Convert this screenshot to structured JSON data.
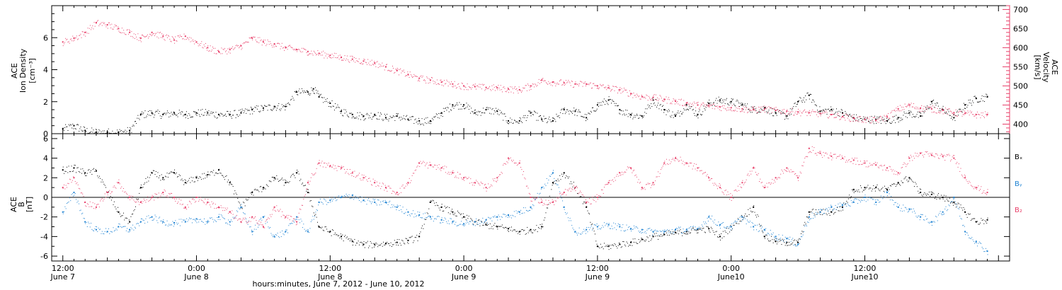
{
  "colors": {
    "black": "#000000",
    "pink": "#e8406a",
    "blue": "#1e82d2"
  },
  "x_axis": {
    "major_ticks": [
      {
        "time": "12:00",
        "date": "June 7"
      },
      {
        "time": "0:00",
        "date": "June 8"
      },
      {
        "time": "12:00",
        "date": "June 8"
      },
      {
        "time": "0:00",
        "date": "June 9"
      },
      {
        "time": "12:00",
        "date": "June 9"
      },
      {
        "time": "0:00",
        "date": "June10"
      },
      {
        "time": "12:00",
        "date": "June10"
      }
    ],
    "title": "hours:minutes, June  7, 2012 - June 10, 2012"
  },
  "top_panel": {
    "left_label_line1": "ACE",
    "left_label_line2": "Ion Density",
    "left_label_line3": "[cm⁻³]",
    "right_label_line1": "ACE",
    "right_label_line2": "Velocity",
    "right_label_line3": "[km/s]"
  },
  "bottom_panel": {
    "label_line1": "ACE",
    "label_line2": "B",
    "label_line3": "[nT]",
    "legend": [
      {
        "text": "Bₓ",
        "color": "#000000"
      },
      {
        "text": "Bᵧ",
        "color": "#1e82d2"
      },
      {
        "text": "B₂",
        "color": "#e8406a"
      }
    ]
  },
  "chart_data": [
    {
      "type": "scatter",
      "title": "",
      "xlabel": "hours:minutes, June  7, 2012 - June 10, 2012",
      "x_range_hours": [
        -1,
        85
      ],
      "ylabel": "ACE Ion Density [cm⁻³]",
      "ylim": [
        0,
        8
      ],
      "yticks": [
        0,
        2,
        4,
        6
      ],
      "y2label": "ACE Velocity [km/s]",
      "y2lim": [
        375,
        710
      ],
      "y2ticks": [
        400,
        450,
        500,
        550,
        600,
        650,
        700
      ],
      "series": [
        {
          "name": "Ion Density",
          "axis": "left",
          "color": "#000000",
          "x": [
            0,
            1,
            2,
            3,
            4,
            5,
            6,
            7,
            8,
            9,
            10,
            11,
            12,
            13,
            14,
            15,
            16,
            17,
            18,
            19,
            20,
            21,
            22,
            22.5,
            23,
            24,
            25,
            26,
            27,
            28,
            29,
            30,
            31,
            32,
            33,
            34,
            35,
            36,
            37,
            38,
            39,
            40,
            41,
            42,
            43,
            44,
            45,
            46,
            47,
            48,
            49,
            50,
            51,
            52,
            53,
            54,
            55,
            56,
            57,
            58,
            59,
            60,
            61,
            62,
            63,
            64,
            65,
            66,
            67,
            68,
            69,
            70,
            71,
            72,
            73,
            74,
            75,
            76,
            77,
            78,
            79,
            80,
            81,
            82,
            83
          ],
          "y": [
            0.3,
            0.5,
            0.2,
            0.1,
            0.1,
            0.1,
            0.2,
            1.2,
            1.3,
            1.2,
            1.3,
            1.2,
            1.3,
            1.3,
            1.2,
            1.2,
            1.3,
            1.5,
            1.6,
            1.7,
            1.7,
            2.6,
            2.6,
            2.8,
            2.3,
            1.9,
            1.4,
            1.2,
            1.1,
            1.2,
            1.0,
            1.1,
            0.9,
            0.8,
            0.8,
            1.3,
            1.8,
            1.8,
            1.3,
            1.5,
            1.4,
            0.8,
            0.8,
            1.3,
            0.9,
            0.8,
            1.5,
            1.4,
            1.0,
            1.8,
            2.1,
            1.5,
            1.2,
            1.1,
            2.1,
            1.5,
            1.1,
            1.8,
            1.2,
            1.9,
            2.1,
            2.0,
            1.8,
            1.5,
            1.6,
            1.3,
            1.1,
            2.0,
            2.4,
            1.4,
            1.5,
            1.3,
            1.0,
            0.9,
            0.9,
            0.8,
            1.0,
            1.3,
            1.1,
            2.0,
            1.5,
            1.0,
            1.8,
            2.2,
            2.3
          ]
        },
        {
          "name": "Velocity",
          "axis": "right",
          "color": "#e8406a",
          "x": [
            0,
            1,
            2,
            3,
            4,
            5,
            6,
            7,
            8,
            9,
            10,
            11,
            12,
            13,
            14,
            15,
            16,
            17,
            18,
            19,
            20,
            21,
            22,
            23,
            24,
            25,
            26,
            27,
            28,
            29,
            30,
            31,
            32,
            33,
            34,
            35,
            36,
            37,
            38,
            39,
            40,
            41,
            42,
            43,
            44,
            45,
            46,
            47,
            48,
            49,
            50,
            51,
            52,
            53,
            54,
            55,
            56,
            57,
            58,
            59,
            60,
            61,
            62,
            63,
            64,
            65,
            66,
            67,
            68,
            69,
            70,
            71,
            72,
            73,
            74,
            75,
            76,
            77,
            78,
            79,
            80,
            81,
            82,
            83
          ],
          "y": [
            615,
            625,
            640,
            665,
            660,
            650,
            640,
            625,
            640,
            630,
            620,
            630,
            615,
            600,
            590,
            595,
            605,
            625,
            615,
            610,
            600,
            595,
            590,
            585,
            580,
            575,
            570,
            565,
            560,
            550,
            540,
            530,
            520,
            515,
            510,
            505,
            500,
            498,
            496,
            495,
            492,
            490,
            500,
            515,
            510,
            508,
            505,
            505,
            500,
            495,
            490,
            480,
            472,
            470,
            465,
            460,
            455,
            450,
            448,
            445,
            443,
            440,
            438,
            440,
            436,
            434,
            432,
            430,
            428,
            425,
            420,
            415,
            412,
            410,
            420,
            440,
            450,
            442,
            440,
            436,
            430,
            428,
            425,
            425
          ]
        }
      ]
    },
    {
      "type": "scatter",
      "title": "",
      "xlabel": "hours:minutes, June  7, 2012 - June 10, 2012",
      "x_range_hours": [
        -1,
        85
      ],
      "ylabel": "ACE B [nT]",
      "ylim": [
        -6.5,
        6.5
      ],
      "yticks": [
        -6,
        -4,
        -2,
        0,
        2,
        4,
        6
      ],
      "zero_line": true,
      "series": [
        {
          "name": "Bₓ",
          "color": "#000000",
          "x": [
            0,
            1,
            2,
            3,
            4,
            5,
            6,
            7,
            8,
            9,
            10,
            11,
            12,
            13,
            14,
            15,
            16,
            17,
            18,
            19,
            20,
            21,
            22,
            23,
            24,
            25,
            26,
            27,
            28,
            29,
            30,
            31,
            32,
            33,
            34,
            35,
            36,
            37,
            38,
            39,
            40,
            41,
            42,
            43,
            44,
            45,
            46,
            47,
            48,
            49,
            50,
            51,
            52,
            53,
            54,
            55,
            56,
            57,
            58,
            59,
            60,
            61,
            62,
            63,
            64,
            65,
            66,
            67,
            68,
            69,
            70,
            71,
            72,
            73,
            74,
            75,
            76,
            77,
            78,
            79,
            80,
            81,
            82,
            83
          ],
          "y": [
            2.8,
            3.0,
            2.5,
            2.7,
            0.5,
            -1.5,
            -2.5,
            1.0,
            2.5,
            2.0,
            2.5,
            1.5,
            2.0,
            2.3,
            2.8,
            1.5,
            -1.0,
            0.5,
            1.0,
            2.0,
            1.5,
            2.5,
            0.5,
            -3.0,
            -3.5,
            -4.0,
            -4.5,
            -4.8,
            -4.8,
            -4.7,
            -4.6,
            -4.4,
            -4.0,
            -0.5,
            -1.0,
            -1.5,
            -2.0,
            -2.5,
            -2.8,
            -3.0,
            -3.2,
            -3.5,
            -3.3,
            -3.0,
            1.5,
            2.5,
            1.0,
            -1.0,
            -5.0,
            -5.0,
            -4.8,
            -4.6,
            -4.3,
            -4.0,
            -3.8,
            -3.6,
            -3.5,
            -3.3,
            -3.2,
            -4.0,
            -3.0,
            -2.0,
            -1.0,
            -4.0,
            -4.5,
            -4.6,
            -4.6,
            -1.5,
            -1.5,
            -1.5,
            -1.0,
            0.8,
            1.0,
            1.0,
            0.8,
            1.5,
            2.0,
            0.5,
            0.3,
            0.0,
            -0.5,
            -1.5,
            -2.5,
            -2.3
          ]
        },
        {
          "name": "Bᵧ",
          "color": "#1e82d2",
          "x": [
            0,
            1,
            2,
            3,
            4,
            5,
            6,
            7,
            8,
            9,
            10,
            11,
            12,
            13,
            14,
            15,
            16,
            17,
            18,
            19,
            20,
            21,
            22,
            23,
            24,
            25,
            26,
            27,
            28,
            29,
            30,
            31,
            32,
            33,
            34,
            35,
            36,
            37,
            38,
            39,
            40,
            41,
            42,
            43,
            44,
            45,
            46,
            47,
            48,
            49,
            50,
            51,
            52,
            53,
            54,
            55,
            56,
            57,
            58,
            59,
            60,
            61,
            62,
            63,
            64,
            65,
            66,
            67,
            68,
            69,
            70,
            71,
            72,
            73,
            74,
            75,
            76,
            77,
            78,
            79,
            80,
            81,
            82,
            83
          ],
          "y": [
            -1.5,
            0.5,
            -2.5,
            -3.3,
            -3.5,
            -3.0,
            -3.3,
            -2.5,
            -2.0,
            -2.5,
            -2.6,
            -2.5,
            -2.2,
            -2.5,
            -2.0,
            -2.5,
            -1.0,
            -3.5,
            -2.0,
            -4.0,
            -3.5,
            -2.0,
            -3.5,
            -0.5,
            -0.3,
            0.0,
            0.2,
            -0.3,
            -0.5,
            -0.5,
            -1.0,
            -1.5,
            -1.8,
            -2.0,
            -2.3,
            -2.5,
            -2.7,
            -2.5,
            -2.3,
            -2.0,
            -1.8,
            -1.5,
            -1.0,
            1.0,
            2.5,
            -1.0,
            -3.5,
            -3.3,
            -3.0,
            -2.8,
            -3.0,
            -3.2,
            -3.3,
            -3.5,
            -3.5,
            -3.3,
            -3.3,
            -3.2,
            -2.0,
            -2.8,
            -3.0,
            -2.0,
            -3.0,
            -3.3,
            -4.0,
            -4.2,
            -4.8,
            -2.0,
            -1.5,
            -1.0,
            -0.8,
            -0.5,
            0.0,
            -0.5,
            0.5,
            -1.0,
            -1.2,
            -2.0,
            -2.5,
            -1.5,
            0.0,
            -3.5,
            -4.5,
            -5.5
          ]
        },
        {
          "name": "B₂",
          "color": "#e8406a",
          "x": [
            0,
            1,
            2,
            3,
            4,
            5,
            6,
            7,
            8,
            9,
            10,
            11,
            12,
            13,
            14,
            15,
            16,
            17,
            18,
            19,
            20,
            21,
            22,
            23,
            24,
            25,
            26,
            27,
            28,
            29,
            30,
            31,
            32,
            33,
            34,
            35,
            36,
            37,
            38,
            39,
            40,
            41,
            42,
            43,
            44,
            45,
            46,
            47,
            48,
            49,
            50,
            51,
            52,
            53,
            54,
            55,
            56,
            57,
            58,
            59,
            60,
            61,
            62,
            63,
            64,
            65,
            66,
            67,
            68,
            69,
            70,
            71,
            72,
            73,
            74,
            75,
            76,
            77,
            78,
            79,
            80,
            81,
            82,
            83
          ],
          "y": [
            1.0,
            2.0,
            -0.5,
            -1.0,
            0.5,
            1.5,
            0.0,
            -0.5,
            0.0,
            0.5,
            0.0,
            -1.0,
            0.0,
            -0.5,
            -1.0,
            -1.5,
            -2.5,
            -2.0,
            -3.0,
            -1.0,
            -2.0,
            -2.5,
            1.5,
            3.5,
            3.2,
            3.0,
            2.5,
            2.0,
            1.5,
            1.0,
            0.5,
            1.5,
            3.5,
            3.3,
            3.0,
            2.5,
            2.0,
            1.5,
            1.0,
            2.0,
            4.0,
            3.5,
            0.0,
            -0.5,
            -0.5,
            0.5,
            1.0,
            -0.5,
            0.0,
            1.5,
            2.5,
            3.0,
            1.0,
            1.5,
            3.5,
            4.0,
            3.5,
            3.0,
            2.0,
            1.0,
            0.0,
            1.5,
            3.0,
            1.0,
            2.0,
            3.0,
            2.0,
            5.0,
            4.5,
            4.2,
            4.0,
            3.8,
            3.5,
            3.3,
            3.0,
            2.5,
            4.0,
            4.5,
            4.3,
            4.2,
            4.0,
            2.0,
            1.0,
            0.5
          ]
        }
      ]
    }
  ]
}
